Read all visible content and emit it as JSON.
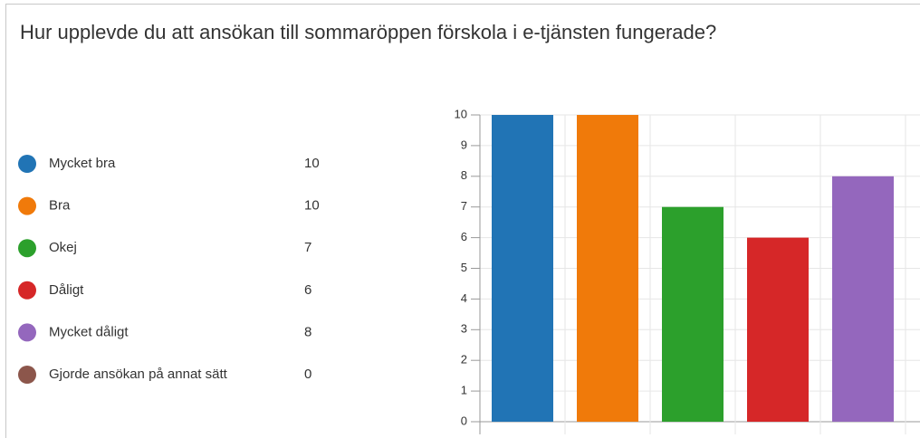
{
  "chart_data": {
    "type": "bar",
    "title": "Hur upplevde du att ansökan till sommaröppen förskola i e-tjänsten fungerade?",
    "categories": [
      "Mycket bra",
      "Bra",
      "Okej",
      "Dåligt",
      "Mycket dåligt",
      "Gjorde ansökan på annat sätt"
    ],
    "values": [
      10,
      10,
      7,
      6,
      8,
      0
    ],
    "colors": [
      "#2174b5",
      "#f07a0a",
      "#2ca02c",
      "#d62728",
      "#9467bd",
      "#8c564b"
    ],
    "ylim": [
      0,
      10
    ],
    "yticks": [
      0,
      1,
      2,
      3,
      4,
      5,
      6,
      7,
      8,
      9,
      10
    ],
    "grid": true
  }
}
